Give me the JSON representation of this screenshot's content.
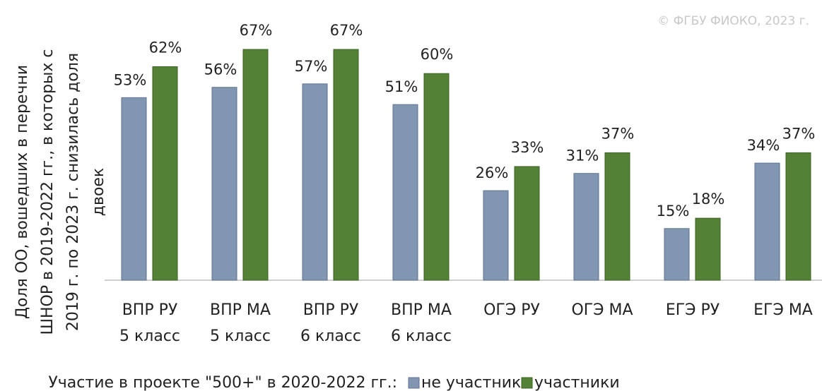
{
  "chart_data": {
    "type": "bar",
    "y_axis_label": [
      "Доля ОО, вошедших в перечни",
      "ШНОР в 2019-2022 гг., в которых с",
      "2019 г. по 2023 г. снизилась доля",
      "двоек"
    ],
    "credit": "© ФГБУ ФИОКО, 2023 г.",
    "categories": [
      [
        "ВПР РУ",
        "5 класс"
      ],
      [
        "ВПР МА",
        "5 класс"
      ],
      [
        "ВПР РУ",
        "6 класс"
      ],
      [
        "ВПР МА",
        "6 класс"
      ],
      [
        "ОГЭ РУ"
      ],
      [
        "ОГЭ МА"
      ],
      [
        "ЕГЭ РУ"
      ],
      [
        "ЕГЭ МА"
      ]
    ],
    "legend_title": "Участие в проекте \"500+\" в 2020-2022 гг.:",
    "series": [
      {
        "name": "не участники",
        "color": "#8196b1",
        "values": [
          53,
          56,
          57,
          51,
          26,
          31,
          15,
          34
        ],
        "value_labels": [
          "53%",
          "56%",
          "57%",
          "51%",
          "26%",
          "31%",
          "15%",
          "34%"
        ]
      },
      {
        "name": "участники",
        "color": "#538135",
        "values": [
          62,
          67,
          67,
          60,
          33,
          37,
          18,
          37
        ],
        "value_labels": [
          "62%",
          "67%",
          "67%",
          "60%",
          "33%",
          "37%",
          "18%",
          "37%"
        ]
      }
    ]
  }
}
